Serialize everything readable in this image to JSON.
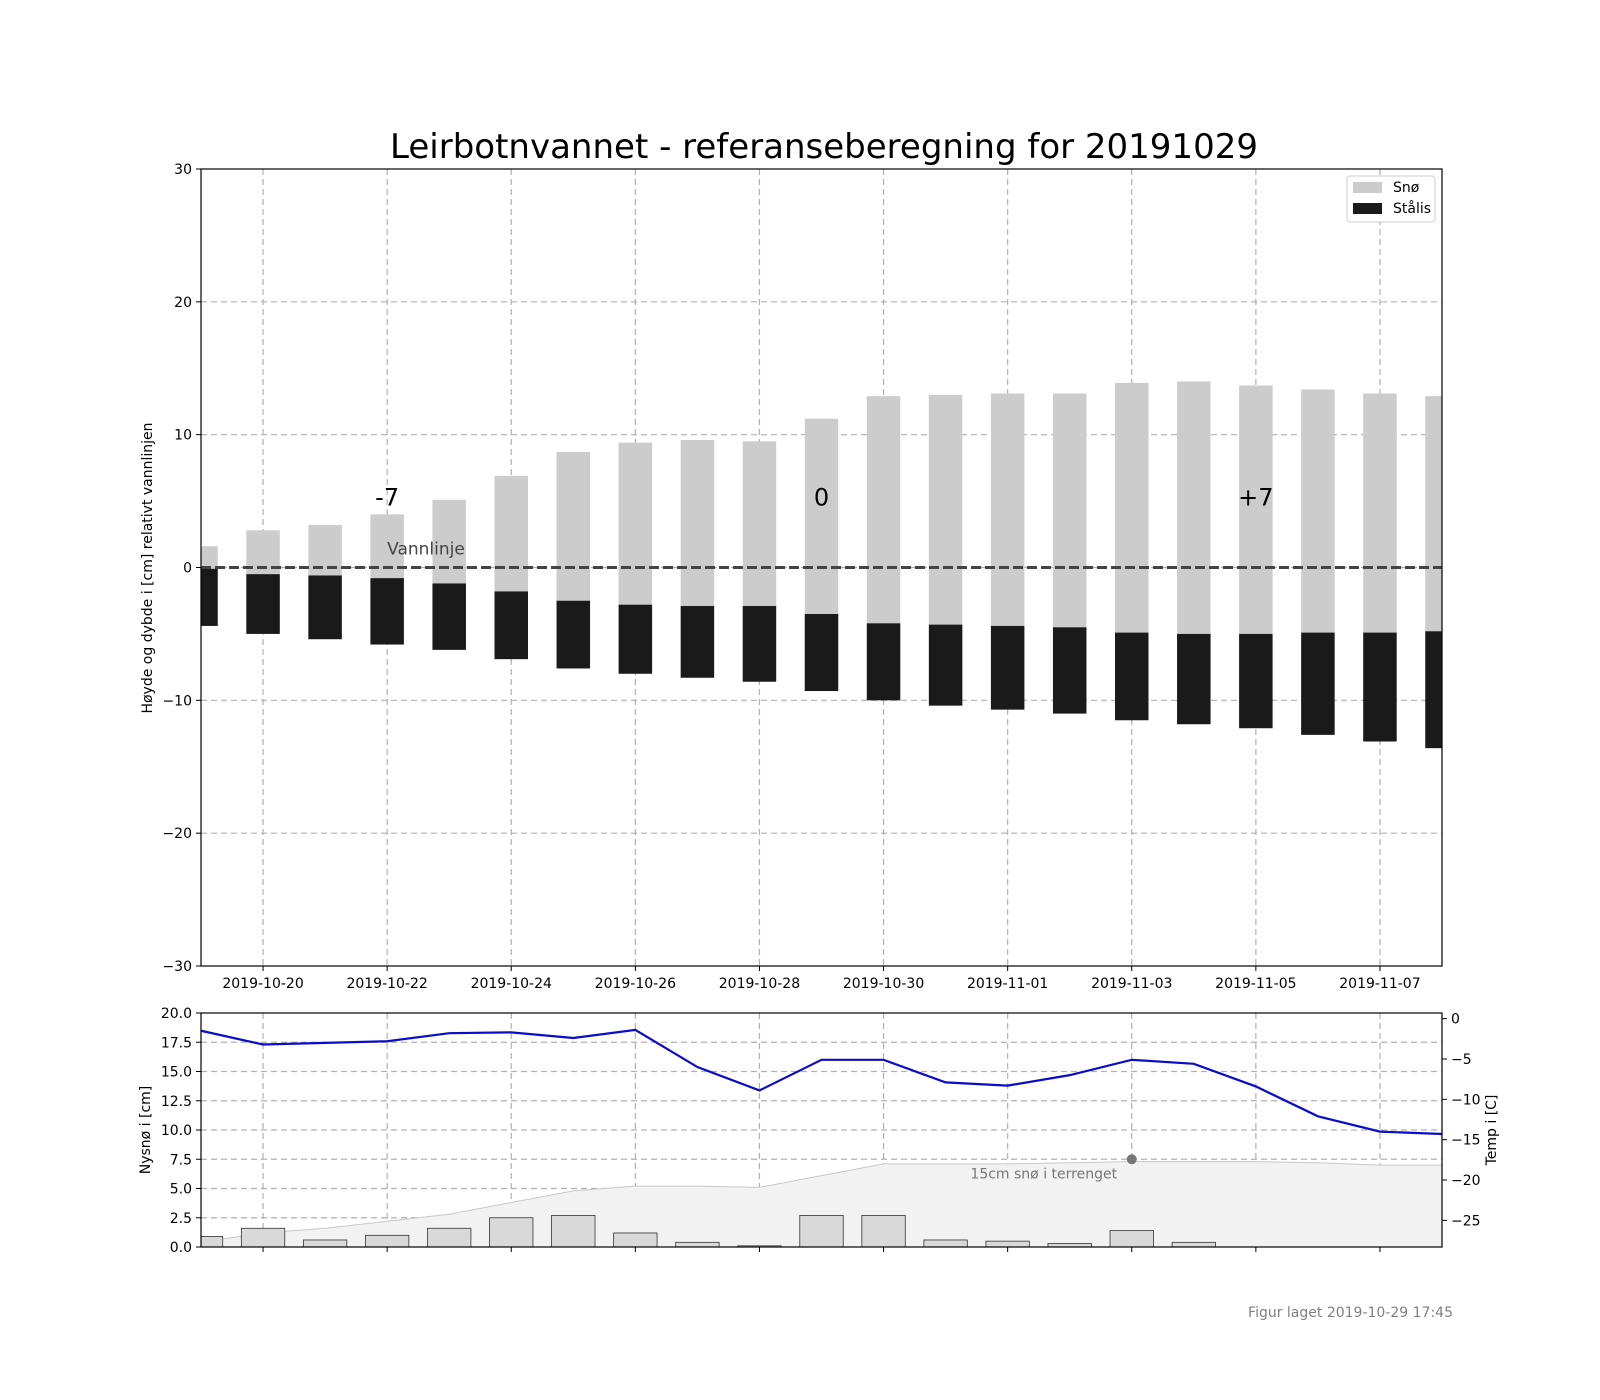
{
  "footer": "Figur laget 2019-10-29 17:45",
  "chart_data": [
    {
      "type": "bar",
      "title": "Leirbotnvannet - referanseberegning for 20191029",
      "ylabel": "Høyde og dybde i [cm] relativt vannlinjen",
      "xlabel": "",
      "ylim": [
        -30,
        30
      ],
      "yticks": [
        -30,
        -20,
        -10,
        0,
        10,
        20,
        30
      ],
      "ytick_labels": [
        "−30",
        "−20",
        "−10",
        "0",
        "10",
        "20",
        "30"
      ],
      "xlim": [
        "2019-10-19",
        "2019-11-08"
      ],
      "xtick_labels": [
        "2019-10-20",
        "2019-10-22",
        "2019-10-24",
        "2019-10-26",
        "2019-10-28",
        "2019-10-30",
        "2019-11-01",
        "2019-11-03",
        "2019-11-05",
        "2019-11-07"
      ],
      "grid": true,
      "legend": {
        "position": "top-right",
        "entries": [
          "Snø",
          "Stålis"
        ]
      },
      "colors": {
        "sno": "#cccccc",
        "stalis": "#1a1a1a",
        "waterline": "#444444"
      },
      "dates": [
        "2019-10-19",
        "2019-10-20",
        "2019-10-21",
        "2019-10-22",
        "2019-10-23",
        "2019-10-24",
        "2019-10-25",
        "2019-10-26",
        "2019-10-27",
        "2019-10-28",
        "2019-10-29",
        "2019-10-30",
        "2019-10-31",
        "2019-11-01",
        "2019-11-02",
        "2019-11-03",
        "2019-11-04",
        "2019-11-05",
        "2019-11-06",
        "2019-11-07",
        "2019-11-08"
      ],
      "series": [
        {
          "name": "Snø",
          "bottom": [
            -0.1,
            -0.5,
            -0.6,
            -0.8,
            -1.2,
            -1.8,
            -2.5,
            -2.8,
            -2.9,
            -2.9,
            -3.5,
            -4.2,
            -4.3,
            -4.4,
            -4.5,
            -4.9,
            -5.0,
            -5.0,
            -4.9,
            -4.9,
            -4.8
          ],
          "top": [
            1.6,
            2.8,
            3.2,
            4.0,
            5.1,
            6.9,
            8.7,
            9.4,
            9.6,
            9.5,
            11.2,
            12.9,
            13.0,
            13.1,
            13.1,
            13.9,
            14.0,
            13.7,
            13.4,
            13.1,
            12.9
          ]
        },
        {
          "name": "Stålis",
          "bottom": [
            -4.4,
            -5.0,
            -5.4,
            -5.8,
            -6.2,
            -6.9,
            -7.6,
            -8.0,
            -8.3,
            -8.6,
            -9.3,
            -10.0,
            -10.4,
            -10.7,
            -11.0,
            -11.5,
            -11.8,
            -12.1,
            -12.6,
            -13.1,
            -13.6
          ],
          "top": [
            -0.1,
            -0.5,
            -0.6,
            -0.8,
            -1.2,
            -1.8,
            -2.5,
            -2.8,
            -2.9,
            -2.9,
            -3.5,
            -4.2,
            -4.3,
            -4.4,
            -4.5,
            -4.9,
            -5.0,
            -5.0,
            -4.9,
            -4.9,
            -4.8
          ]
        }
      ],
      "waterline": {
        "y": 0,
        "label": "Vannlinje"
      },
      "annotations": [
        {
          "text": "-7",
          "x": "2019-10-22",
          "y": 4.5
        },
        {
          "text": "0",
          "x": "2019-10-29",
          "y": 4.5
        },
        {
          "text": "+7",
          "x": "2019-11-05",
          "y": 4.5
        }
      ]
    },
    {
      "type": "bar",
      "ylabel": "Nysnø i [cm]",
      "ylabel_right": "Temp i [C]",
      "ylim": [
        0,
        20
      ],
      "yticks": [
        0,
        2.5,
        5,
        7.5,
        10,
        12.5,
        15,
        17.5,
        20
      ],
      "ytick_labels": [
        "0.0",
        "2.5",
        "5.0",
        "7.5",
        "10.0",
        "12.5",
        "15.0",
        "17.5",
        "20.0"
      ],
      "ylim_right": [
        -28.3,
        0.7
      ],
      "yticks_right": [
        0,
        -5,
        -10,
        -15,
        -20,
        -25
      ],
      "ytick_labels_right": [
        "0",
        "−5",
        "−10",
        "−15",
        "−20",
        "−25"
      ],
      "grid": true,
      "colors": {
        "bars": "#d9d9d9",
        "temperature": "#0b0bcc",
        "terrain_fill": "#f2f2f2",
        "terrain_line": "#c8c8c8",
        "marker": "#777777"
      },
      "dates": [
        "2019-10-19",
        "2019-10-20",
        "2019-10-21",
        "2019-10-22",
        "2019-10-23",
        "2019-10-24",
        "2019-10-25",
        "2019-10-26",
        "2019-10-27",
        "2019-10-28",
        "2019-10-29",
        "2019-10-30",
        "2019-10-31",
        "2019-11-01",
        "2019-11-02",
        "2019-11-03",
        "2019-11-04",
        "2019-11-05",
        "2019-11-06",
        "2019-11-07",
        "2019-11-08"
      ],
      "new_snow": [
        0.9,
        1.6,
        0.6,
        1.0,
        1.6,
        2.5,
        2.7,
        1.2,
        0.4,
        0.1,
        2.7,
        2.7,
        0.6,
        0.5,
        0.3,
        1.4,
        0.4,
        0,
        0,
        0,
        0
      ],
      "temperature": [
        -1.5,
        -3.2,
        -3.0,
        -2.8,
        -1.8,
        -1.7,
        -2.4,
        -1.4,
        -6.0,
        -8.9,
        -5.1,
        -5.1,
        -7.9,
        -8.3,
        -7.0,
        -5.1,
        -5.6,
        -8.4,
        -12.1,
        -14.0,
        -14.3
      ],
      "terrain_snow": [
        0.4,
        1.2,
        1.6,
        2.2,
        2.8,
        3.8,
        4.8,
        5.2,
        5.2,
        5.1,
        6.1,
        7.1,
        7.1,
        7.1,
        7.2,
        7.3,
        7.3,
        7.3,
        7.2,
        7.0,
        7.0
      ],
      "marker": {
        "x": "2019-11-03",
        "y": 7.5,
        "label": "15cm snø i terrenget"
      }
    }
  ]
}
